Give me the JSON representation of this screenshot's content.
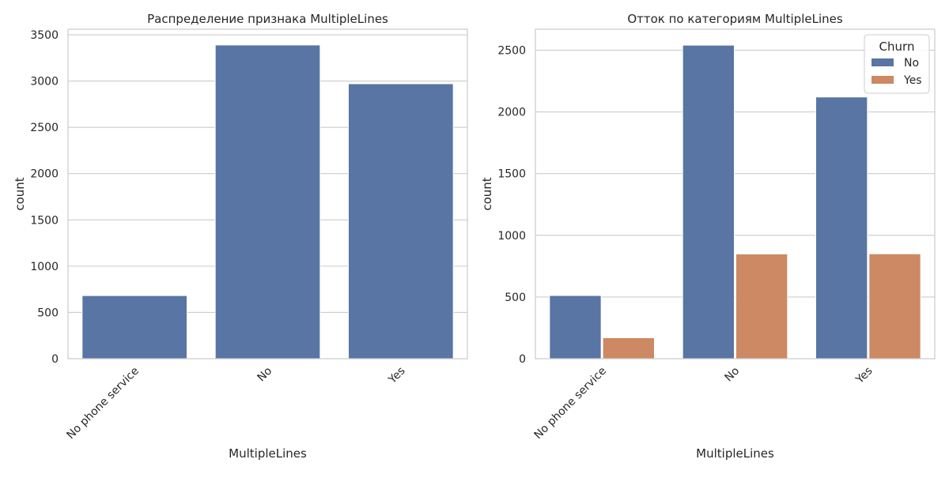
{
  "colors": {
    "No": "#5875a4",
    "Yes": "#cc8963",
    "grid": "#cccccc",
    "frame": "#cccccc",
    "background": "#ffffff"
  },
  "chart_data": [
    {
      "type": "bar",
      "title": "Распределение признака MultipleLines",
      "xlabel": "MultipleLines",
      "ylabel": "count",
      "categories": [
        "No phone service",
        "No",
        "Yes"
      ],
      "values": [
        682,
        3390,
        2971
      ],
      "ylim": [
        0,
        3560
      ],
      "yticks": [
        0,
        500,
        1000,
        1500,
        2000,
        2500,
        3000,
        3500
      ],
      "grid": true
    },
    {
      "type": "bar",
      "title": "Отток по категориям MultipleLines",
      "xlabel": "MultipleLines",
      "ylabel": "count",
      "categories": [
        "No phone service",
        "No",
        "Yes"
      ],
      "series": [
        {
          "name": "No",
          "values": [
            512,
            2541,
            2121
          ]
        },
        {
          "name": "Yes",
          "values": [
            170,
            849,
            850
          ]
        }
      ],
      "legend_title": "Churn",
      "legend_position": "top-right",
      "ylim": [
        0,
        2670
      ],
      "yticks": [
        0,
        500,
        1000,
        1500,
        2000,
        2500
      ],
      "grid": true
    }
  ]
}
